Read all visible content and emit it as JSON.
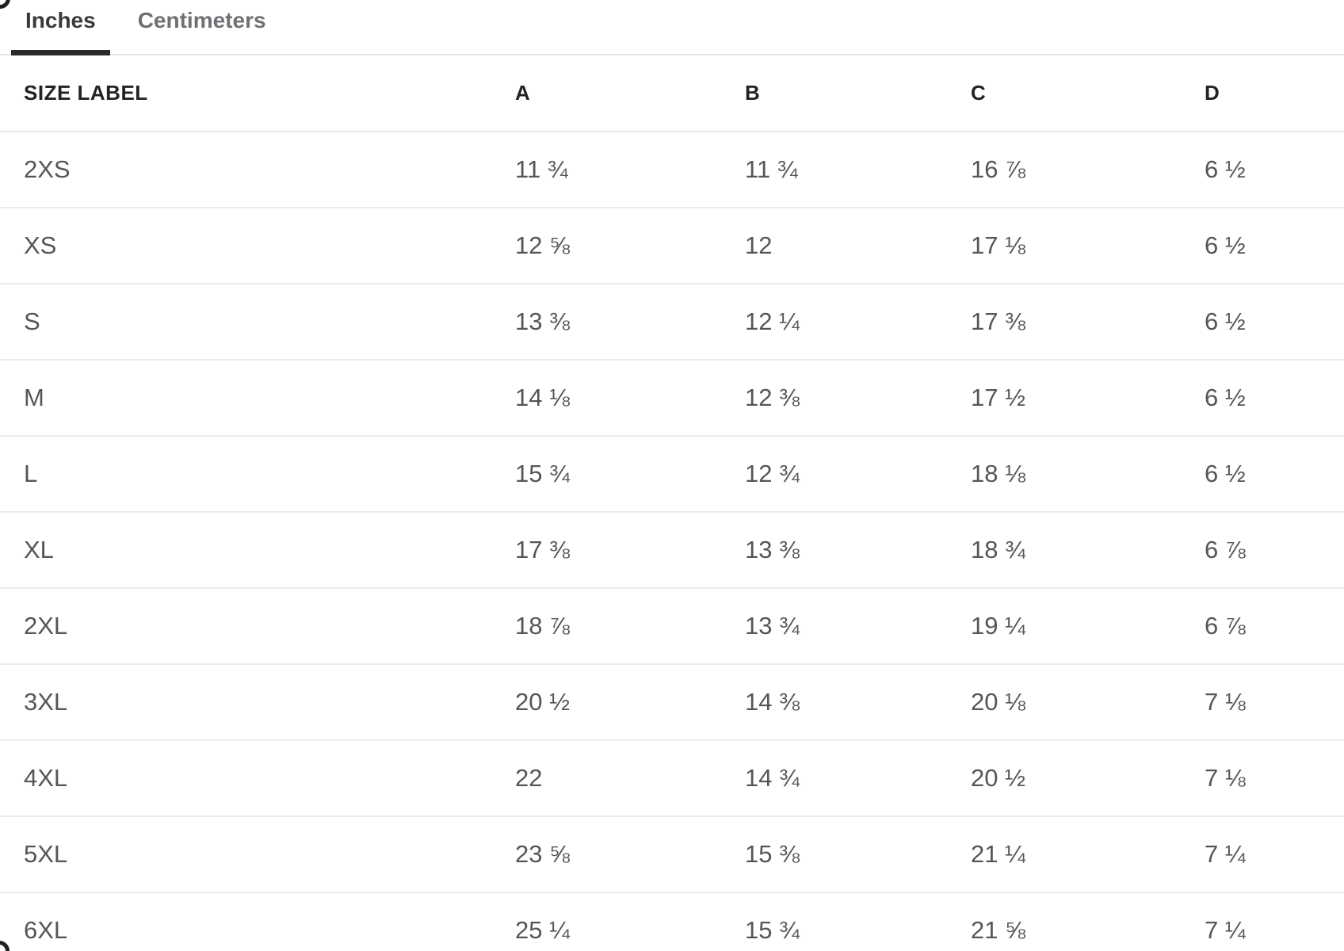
{
  "tabs": {
    "inches": "Inches",
    "centimeters": "Centimeters"
  },
  "table": {
    "header": {
      "size_label": "SIZE LABEL",
      "cols": [
        "A",
        "B",
        "C",
        "D"
      ]
    },
    "rows": [
      {
        "size": "2XS",
        "values": [
          "11 ¾",
          "11 ¾",
          "16 ⅞",
          "6 ½"
        ]
      },
      {
        "size": "XS",
        "values": [
          "12 ⅝",
          "12",
          "17 ⅛",
          "6 ½"
        ]
      },
      {
        "size": "S",
        "values": [
          "13 ⅜",
          "12 ¼",
          "17 ⅜",
          "6 ½"
        ]
      },
      {
        "size": "M",
        "values": [
          "14 ⅛",
          "12 ⅜",
          "17 ½",
          "6 ½"
        ]
      },
      {
        "size": "L",
        "values": [
          "15 ¾",
          "12 ¾",
          "18 ⅛",
          "6 ½"
        ]
      },
      {
        "size": "XL",
        "values": [
          "17 ⅜",
          "13 ⅜",
          "18 ¾",
          "6 ⅞"
        ]
      },
      {
        "size": "2XL",
        "values": [
          "18 ⅞",
          "13 ¾",
          "19 ¼",
          "6 ⅞"
        ]
      },
      {
        "size": "3XL",
        "values": [
          "20 ½",
          "14 ⅜",
          "20 ⅛",
          "7 ⅛"
        ]
      },
      {
        "size": "4XL",
        "values": [
          "22",
          "14 ¾",
          "20 ½",
          "7 ⅛"
        ]
      },
      {
        "size": "5XL",
        "values": [
          "23 ⅝",
          "15 ⅜",
          "21 ¼",
          "7 ¼"
        ]
      },
      {
        "size": "6XL",
        "values": [
          "25 ¼",
          "15 ¾",
          "21 ⅝",
          "7 ¼"
        ]
      }
    ],
    "colors": {
      "active_tab_text": "#3a3a3c",
      "inactive_tab_text": "#6f7073",
      "active_tab_underline": "#2b2b2b",
      "header_text": "#222326",
      "data_text": "#55565a",
      "row_divider": "#ececec"
    }
  }
}
